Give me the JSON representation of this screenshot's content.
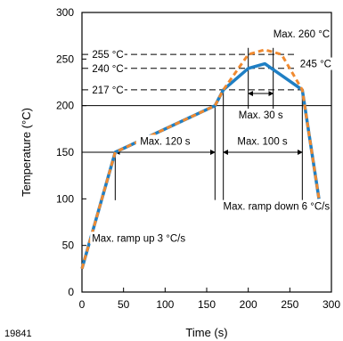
{
  "chart_data": {
    "type": "line",
    "xlabel": "Time (s)",
    "ylabel": "Temperature (°C)",
    "xlim": [
      0,
      300
    ],
    "ylim": [
      0,
      300
    ],
    "x_ticks": [
      0,
      50,
      100,
      150,
      200,
      250,
      300
    ],
    "y_ticks": [
      0,
      50,
      100,
      150,
      200,
      250,
      300
    ],
    "grid": false,
    "series": [
      {
        "color": "#1f7fc4",
        "style": "solid",
        "points": [
          [
            0,
            25
          ],
          [
            40,
            150
          ],
          [
            160,
            200
          ],
          [
            170,
            217
          ],
          [
            200,
            240
          ],
          [
            220,
            245
          ],
          [
            265,
            217
          ],
          [
            285,
            100
          ]
        ]
      },
      {
        "color": "#f08a30",
        "style": "dashed",
        "points": [
          [
            0,
            25
          ],
          [
            40,
            150
          ],
          [
            160,
            200
          ],
          [
            170,
            217
          ],
          [
            200,
            255
          ],
          [
            220,
            260
          ],
          [
            240,
            255
          ],
          [
            265,
            217
          ],
          [
            285,
            100
          ]
        ]
      }
    ],
    "reference_lines": [
      {
        "label": "255 °C",
        "y": 255
      },
      {
        "label": "240 °C",
        "y": 240
      },
      {
        "label": "217 °C",
        "y": 217
      }
    ],
    "annotations": {
      "max_peak": "Max. 260 °C",
      "peak_245": "245 °C",
      "max_30s": "Max. 30 s",
      "max_120s": "Max. 120 s",
      "max_100s": "Max. 100 s",
      "ramp_down": "Max. ramp down 6 °C/s",
      "ramp_up": "Max. ramp up 3 °C/s"
    },
    "figure_number": "19841"
  },
  "colors": {
    "solid_line": "#1f7fc4",
    "dashed_line": "#f08a30",
    "axes": "#000000"
  }
}
